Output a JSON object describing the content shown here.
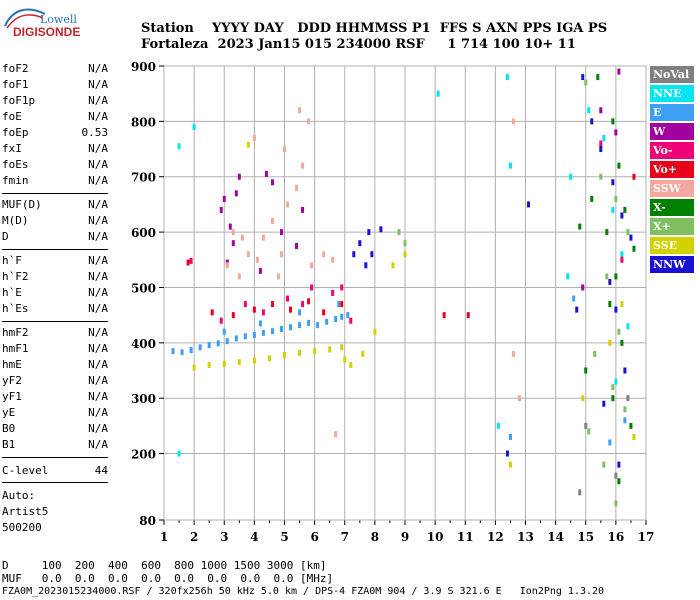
{
  "logo": {
    "top": "Lowell",
    "bottom": "DIGISONDE"
  },
  "header": {
    "row1": "Station    YYYY DAY   DDD HHMMSS P1  FFS S AXN PPS IGA PS",
    "row2": "Fortaleza  2023 Jan15 015 234000 RSF     1 714 100 10+ 11"
  },
  "params_group1": [
    {
      "name": "foF2",
      "value": "N/A"
    },
    {
      "name": "foF1",
      "value": "N/A"
    },
    {
      "name": "foF1p",
      "value": "N/A"
    },
    {
      "name": "foE",
      "value": "N/A"
    },
    {
      "name": "foEp",
      "value": "0.53"
    },
    {
      "name": "fxI",
      "value": "N/A"
    },
    {
      "name": "foEs",
      "value": "N/A"
    },
    {
      "name": "fmin",
      "value": "N/A"
    }
  ],
  "params_group2": [
    {
      "name": "MUF(D)",
      "value": "N/A"
    },
    {
      "name": "M(D)",
      "value": "N/A"
    },
    {
      "name": "D",
      "value": "N/A"
    }
  ],
  "params_group3": [
    {
      "name": "h`F",
      "value": "N/A"
    },
    {
      "name": "h`F2",
      "value": "N/A"
    },
    {
      "name": "h`E",
      "value": "N/A"
    },
    {
      "name": "h`Es",
      "value": "N/A"
    }
  ],
  "params_group4": [
    {
      "name": "hmF2",
      "value": "N/A"
    },
    {
      "name": "hmF1",
      "value": "N/A"
    },
    {
      "name": "hmE",
      "value": "N/A"
    },
    {
      "name": "yF2",
      "value": "N/A"
    },
    {
      "name": "yF1",
      "value": "N/A"
    },
    {
      "name": "yE",
      "value": "N/A"
    },
    {
      "name": "B0",
      "value": "N/A"
    },
    {
      "name": "B1",
      "value": "N/A"
    }
  ],
  "clevel": {
    "name": "C-level",
    "value": "44"
  },
  "autoscaling": [
    "Auto:",
    "Artist5",
    "500200"
  ],
  "bottom": {
    "d_row": "D     100  200  400  600  800 1000 1500 3000 [km]",
    "muf_row": "MUF   0.0  0.0  0.0  0.0  0.0  0.0  0.0  0.0 [MHz]",
    "file_row": "FZA0M_2023015234000.RSF / 320fx256h 50 kHz 5.0 km / DPS-4 FZA0M 904 / 3.9 S 321.6 E   Ion2Png 1.3.20"
  },
  "legend": [
    {
      "label": "NoVal",
      "color": "#808080"
    },
    {
      "label": "NNE",
      "color": "#00e5f0"
    },
    {
      "label": "E",
      "color": "#3ea0f5"
    },
    {
      "label": "W",
      "color": "#a000a0"
    },
    {
      "label": "Vo-",
      "color": "#f00078"
    },
    {
      "label": "Vo+",
      "color": "#e8001a"
    },
    {
      "label": "SSW",
      "color": "#f4a8a0"
    },
    {
      "label": "X-",
      "color": "#008000"
    },
    {
      "label": "X+",
      "color": "#80c060"
    },
    {
      "label": "SSE",
      "color": "#d2d200"
    },
    {
      "label": "NNW",
      "color": "#1a10d0"
    }
  ],
  "chart_data": {
    "type": "scatter",
    "title": "",
    "xlabel": "",
    "ylabel": "",
    "xlim": [
      1,
      17
    ],
    "ylim": [
      80,
      900
    ],
    "x_ticks": [
      "1",
      "2",
      "3",
      "4",
      "5",
      "6",
      "7",
      "8",
      "9",
      "10",
      "11",
      "12",
      "13",
      "14",
      "15",
      "16",
      "17"
    ],
    "y_ticks": [
      "80",
      "200",
      "300",
      "400",
      "500",
      "600",
      "700",
      "800",
      "900"
    ],
    "grid": true,
    "series": [
      {
        "name": "NNE",
        "color": "#00e5f0",
        "points": [
          [
            1.5,
            200
          ],
          [
            1.5,
            755
          ],
          [
            2.0,
            790
          ],
          [
            12.4,
            880
          ],
          [
            12.5,
            720
          ],
          [
            12.1,
            250
          ],
          [
            14.5,
            700
          ],
          [
            14.4,
            520
          ],
          [
            15.1,
            820
          ],
          [
            15.6,
            770
          ],
          [
            15.9,
            640
          ],
          [
            16.2,
            560
          ],
          [
            16.4,
            430
          ],
          [
            16.0,
            330
          ],
          [
            10.1,
            850
          ]
        ]
      },
      {
        "name": "E",
        "color": "#3ea0f5",
        "points": [
          [
            1.3,
            385
          ],
          [
            1.6,
            383
          ],
          [
            1.9,
            387
          ],
          [
            2.2,
            392
          ],
          [
            2.5,
            396
          ],
          [
            2.8,
            399
          ],
          [
            3.1,
            403
          ],
          [
            3.4,
            408
          ],
          [
            3.7,
            412
          ],
          [
            4.0,
            414
          ],
          [
            4.3,
            418
          ],
          [
            4.6,
            421
          ],
          [
            4.9,
            425
          ],
          [
            5.2,
            428
          ],
          [
            5.5,
            432
          ],
          [
            5.8,
            436
          ],
          [
            6.1,
            432
          ],
          [
            6.4,
            438
          ],
          [
            6.7,
            443
          ],
          [
            6.9,
            447
          ],
          [
            7.1,
            450
          ],
          [
            3.0,
            420
          ],
          [
            4.2,
            435
          ],
          [
            5.5,
            455
          ],
          [
            6.8,
            470
          ],
          [
            12.5,
            230
          ],
          [
            14.6,
            480
          ],
          [
            15.8,
            220
          ],
          [
            16.3,
            260
          ]
        ]
      },
      {
        "name": "W",
        "color": "#a000a0",
        "points": [
          [
            2.9,
            640
          ],
          [
            3.0,
            660
          ],
          [
            3.2,
            610
          ],
          [
            3.3,
            580
          ],
          [
            3.4,
            670
          ],
          [
            3.5,
            700
          ],
          [
            3.1,
            545
          ],
          [
            4.4,
            705
          ],
          [
            4.6,
            690
          ],
          [
            4.9,
            600
          ],
          [
            5.4,
            575
          ],
          [
            5.6,
            640
          ],
          [
            4.2,
            530
          ],
          [
            16.1,
            890
          ],
          [
            15.5,
            820
          ],
          [
            16.0,
            780
          ],
          [
            14.9,
            500
          ]
        ]
      },
      {
        "name": "Vo-",
        "color": "#f00078",
        "points": [
          [
            1.9,
            548
          ],
          [
            2.9,
            440
          ],
          [
            3.7,
            470
          ],
          [
            4.3,
            455
          ],
          [
            5.1,
            480
          ],
          [
            5.6,
            470
          ],
          [
            5.9,
            500
          ],
          [
            6.6,
            490
          ],
          [
            6.9,
            500
          ],
          [
            7.2,
            440
          ],
          [
            16.2,
            550
          ],
          [
            15.5,
            760
          ]
        ]
      },
      {
        "name": "Vo+",
        "color": "#e8001a",
        "points": [
          [
            1.8,
            545
          ],
          [
            2.6,
            455
          ],
          [
            3.3,
            450
          ],
          [
            4.0,
            460
          ],
          [
            4.6,
            470
          ],
          [
            5.2,
            460
          ],
          [
            5.8,
            475
          ],
          [
            6.3,
            455
          ],
          [
            6.9,
            470
          ],
          [
            10.3,
            450
          ],
          [
            11.1,
            450
          ],
          [
            16.6,
            700
          ]
        ]
      },
      {
        "name": "SSW",
        "color": "#f4a8a0",
        "points": [
          [
            3.1,
            540
          ],
          [
            3.3,
            600
          ],
          [
            3.6,
            590
          ],
          [
            3.8,
            560
          ],
          [
            4.1,
            550
          ],
          [
            4.3,
            590
          ],
          [
            4.6,
            620
          ],
          [
            4.9,
            560
          ],
          [
            5.1,
            650
          ],
          [
            5.4,
            680
          ],
          [
            5.6,
            720
          ],
          [
            5.5,
            820
          ],
          [
            5.0,
            750
          ],
          [
            4.0,
            770
          ],
          [
            3.5,
            520
          ],
          [
            6.3,
            560
          ],
          [
            6.6,
            550
          ],
          [
            5.8,
            800
          ],
          [
            5.9,
            540
          ],
          [
            4.8,
            520
          ],
          [
            6.7,
            235
          ],
          [
            12.6,
            800
          ],
          [
            12.6,
            380
          ],
          [
            12.8,
            300
          ]
        ]
      },
      {
        "name": "X-",
        "color": "#008000",
        "points": [
          [
            15.4,
            880
          ],
          [
            15.9,
            800
          ],
          [
            16.1,
            720
          ],
          [
            16.3,
            640
          ],
          [
            15.7,
            600
          ],
          [
            16.0,
            520
          ],
          [
            15.8,
            470
          ],
          [
            16.2,
            400
          ],
          [
            15.0,
            350
          ],
          [
            15.9,
            300
          ],
          [
            16.5,
            250
          ],
          [
            16.1,
            150
          ],
          [
            15.2,
            660
          ],
          [
            14.8,
            610
          ],
          [
            16.6,
            570
          ]
        ]
      },
      {
        "name": "X+",
        "color": "#80c060",
        "points": [
          [
            15.0,
            870
          ],
          [
            15.5,
            700
          ],
          [
            16.0,
            660
          ],
          [
            16.4,
            600
          ],
          [
            15.7,
            520
          ],
          [
            16.1,
            420
          ],
          [
            15.3,
            380
          ],
          [
            15.9,
            320
          ],
          [
            16.3,
            280
          ],
          [
            15.1,
            240
          ],
          [
            15.6,
            180
          ],
          [
            16.0,
            110
          ],
          [
            9.0,
            580
          ],
          [
            8.8,
            600
          ]
        ]
      },
      {
        "name": "SSE",
        "color": "#d2d200",
        "points": [
          [
            2.0,
            355
          ],
          [
            2.5,
            360
          ],
          [
            3.0,
            362
          ],
          [
            3.5,
            365
          ],
          [
            4.0,
            368
          ],
          [
            4.5,
            372
          ],
          [
            5.0,
            378
          ],
          [
            5.5,
            382
          ],
          [
            6.0,
            385
          ],
          [
            6.5,
            388
          ],
          [
            6.9,
            392
          ],
          [
            7.0,
            370
          ],
          [
            7.2,
            360
          ],
          [
            7.6,
            380
          ],
          [
            8.0,
            420
          ],
          [
            8.6,
            540
          ],
          [
            9.0,
            560
          ],
          [
            3.8,
            758
          ],
          [
            12.5,
            180
          ],
          [
            14.9,
            300
          ],
          [
            15.8,
            400
          ],
          [
            16.2,
            470
          ],
          [
            16.6,
            230
          ]
        ]
      },
      {
        "name": "NNW",
        "color": "#1a10d0",
        "points": [
          [
            7.3,
            560
          ],
          [
            7.8,
            600
          ],
          [
            8.2,
            605
          ],
          [
            7.5,
            580
          ],
          [
            7.7,
            540
          ],
          [
            7.9,
            560
          ],
          [
            12.4,
            200
          ],
          [
            14.9,
            880
          ],
          [
            15.2,
            800
          ],
          [
            15.5,
            750
          ],
          [
            15.9,
            690
          ],
          [
            16.2,
            630
          ],
          [
            16.5,
            590
          ],
          [
            15.8,
            510
          ],
          [
            16.0,
            460
          ],
          [
            16.3,
            350
          ],
          [
            15.6,
            290
          ],
          [
            16.1,
            180
          ],
          [
            14.7,
            460
          ],
          [
            13.1,
            650
          ]
        ]
      },
      {
        "name": "NoVal",
        "color": "#808080",
        "points": [
          [
            15.0,
            250
          ],
          [
            16.0,
            160
          ],
          [
            14.8,
            130
          ],
          [
            16.4,
            300
          ]
        ]
      }
    ]
  }
}
